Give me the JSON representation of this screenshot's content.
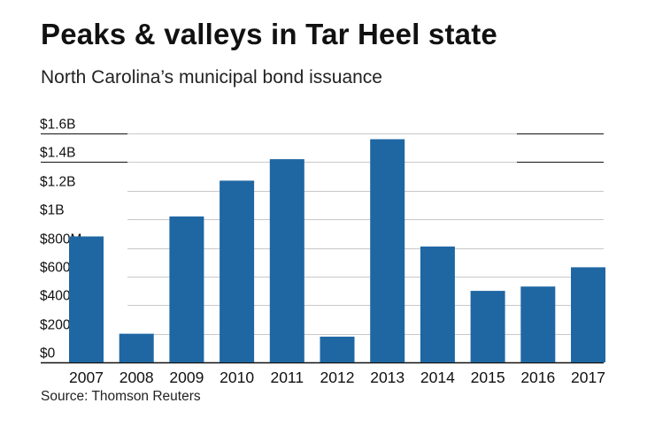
{
  "title": "Peaks & valleys in Tar Heel state",
  "subtitle": "North Carolina’s municipal bond issuance",
  "source": "Source: Thomson Reuters",
  "colors": {
    "bar": "#1f67a3",
    "grid": "#c8c8c8",
    "major_grid": "#111111",
    "text": "#111111"
  },
  "chart_data": {
    "type": "bar",
    "title": "Peaks & valleys in Tar Heel state",
    "xlabel": "",
    "ylabel": "",
    "categories": [
      "2007",
      "2008",
      "2009",
      "2010",
      "2011",
      "2012",
      "2013",
      "2014",
      "2015",
      "2016",
      "2017"
    ],
    "values": [
      880,
      200,
      1020,
      1270,
      1420,
      180,
      1560,
      810,
      500,
      530,
      665
    ],
    "units": "millions of dollars",
    "ylim": [
      0,
      1600
    ],
    "yticks": [
      0,
      200,
      400,
      600,
      800,
      1000,
      1200,
      1400,
      1600
    ],
    "ytick_labels": [
      "$0",
      "$200M",
      "$400M",
      "$600M",
      "$800M",
      "$1B",
      "$1.2B",
      "$1.4B",
      "$1.6B"
    ],
    "grid": true,
    "legend": "none"
  }
}
